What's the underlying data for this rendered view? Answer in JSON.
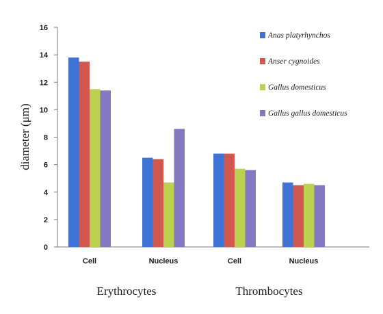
{
  "chart_data": {
    "type": "bar",
    "title": "",
    "ylabel": "diameter (μm)",
    "ylim": [
      0,
      16
    ],
    "yticks": [
      0,
      2,
      4,
      6,
      8,
      10,
      12,
      14,
      16
    ],
    "grid": false,
    "legend_position": "top-right",
    "categories": [
      "Cell",
      "Nucleus",
      "Cell",
      "Nucleus"
    ],
    "groups": [
      {
        "label": "Erythrocytes",
        "categories": [
          0,
          1
        ]
      },
      {
        "label": "Thrombocytes",
        "categories": [
          2,
          3
        ]
      }
    ],
    "series": [
      {
        "name": "Anas platyrhynchos",
        "color": "#3f73d6",
        "values": [
          13.8,
          6.5,
          6.8,
          4.7
        ]
      },
      {
        "name": "Anser cygnoides",
        "color": "#d0584f",
        "values": [
          13.5,
          6.4,
          6.8,
          4.5
        ]
      },
      {
        "name": "Gallus domesticus",
        "color": "#bcd14f",
        "values": [
          11.5,
          4.7,
          5.7,
          4.6
        ]
      },
      {
        "name": "Gallus gallus domesticus",
        "color": "#8478c2",
        "values": [
          11.4,
          8.6,
          5.6,
          4.5
        ]
      }
    ]
  }
}
